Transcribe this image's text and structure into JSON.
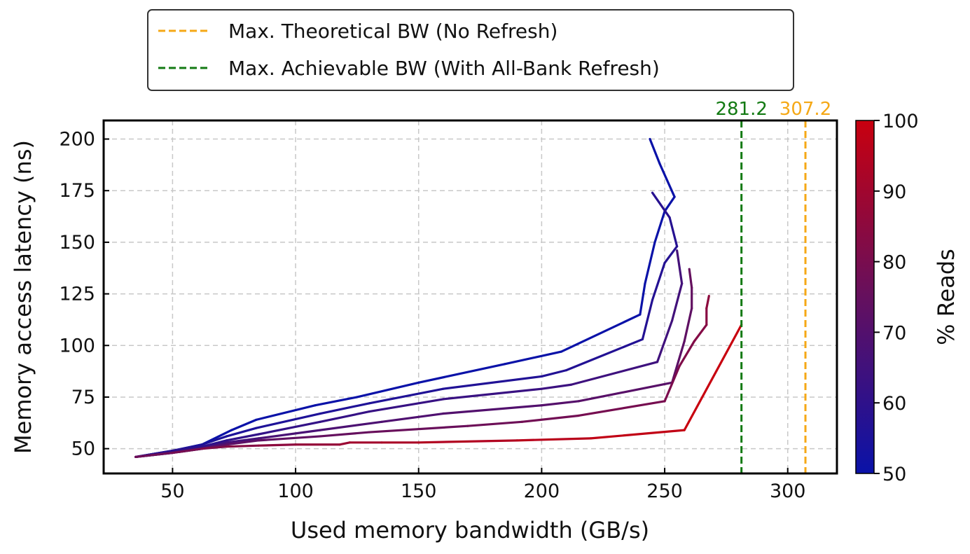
{
  "chart_data": {
    "type": "line",
    "xlabel": "Used memory bandwidth (GB/s)",
    "ylabel": "Memory access latency (ns)",
    "xlim": [
      22,
      320
    ],
    "ylim": [
      38,
      209
    ],
    "xticks": [
      50,
      100,
      150,
      200,
      250,
      300
    ],
    "yticks": [
      50,
      75,
      100,
      125,
      150,
      175,
      200
    ],
    "grid": true,
    "colorbar": {
      "label": "% Reads",
      "min": 50,
      "max": 100,
      "ticks": [
        50,
        60,
        70,
        80,
        90,
        100
      ],
      "color_low": "#0a12a8",
      "color_high": "#c8000f"
    },
    "reference_lines": [
      {
        "name": "Max. Theoretical BW (No Refresh)",
        "x": 307.2,
        "label": "307.2",
        "color": "#f5a816"
      },
      {
        "name": "Max. Achievable BW (With All-Bank Refresh)",
        "x": 281.2,
        "label": "281.2",
        "color": "#137a13"
      }
    ],
    "legend_position": "top-center",
    "series": [
      {
        "reads_pct": 50,
        "x": [
          35,
          50,
          62,
          74,
          84,
          108,
          125,
          150,
          185,
          208,
          240,
          242,
          246,
          250,
          254,
          248,
          244
        ],
        "y": [
          46,
          49,
          52,
          59,
          64,
          71,
          75,
          82,
          91,
          97,
          115,
          130,
          150,
          165,
          172,
          188,
          200
        ]
      },
      {
        "reads_pct": 58,
        "x": [
          35,
          50,
          62,
          72,
          84,
          110,
          130,
          160,
          200,
          210,
          241,
          245,
          250,
          255,
          252,
          245
        ],
        "y": [
          46,
          49,
          52,
          56,
          60,
          67,
          72,
          79,
          85,
          88,
          103,
          122,
          140,
          148,
          162,
          174
        ]
      },
      {
        "reads_pct": 66,
        "x": [
          35,
          50,
          62,
          72,
          85,
          110,
          130,
          160,
          200,
          212,
          247,
          253,
          257,
          255
        ],
        "y": [
          46,
          49,
          51,
          54,
          57,
          63,
          68,
          74,
          79,
          81,
          92,
          112,
          130,
          146
        ]
      },
      {
        "reads_pct": 75,
        "x": [
          35,
          50,
          62,
          72,
          85,
          110,
          135,
          160,
          200,
          215,
          253,
          258,
          261,
          261,
          260
        ],
        "y": [
          46,
          48,
          50,
          53,
          55,
          59,
          63,
          67,
          71,
          73,
          82,
          102,
          118,
          128,
          137
        ]
      },
      {
        "reads_pct": 85,
        "x": [
          35,
          50,
          62,
          72,
          85,
          110,
          130,
          170,
          192,
          215,
          250,
          256,
          262,
          267,
          267,
          268
        ],
        "y": [
          46,
          48,
          50,
          52,
          54,
          56,
          58,
          61,
          63,
          66,
          73,
          90,
          102,
          110,
          118,
          124
        ]
      },
      {
        "reads_pct": 100,
        "x": [
          35,
          50,
          62,
          72,
          85,
          100,
          118,
          122,
          135,
          150,
          190,
          220,
          258,
          281.2
        ],
        "y": [
          46,
          48,
          50,
          51,
          51.5,
          52,
          52,
          53,
          53,
          53,
          54,
          55,
          59,
          110
        ]
      }
    ]
  }
}
